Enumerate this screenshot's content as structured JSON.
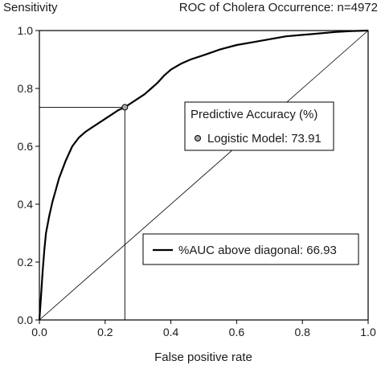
{
  "chart_data": {
    "type": "line",
    "title": "ROC of Cholera Occurrence: n=4972",
    "xlabel": "False positive rate",
    "ylabel": "Sensitivity",
    "xlim": [
      0.0,
      1.0
    ],
    "ylim": [
      0.0,
      1.0
    ],
    "xticks": [
      "0.0",
      "0.2",
      "0.4",
      "0.6",
      "0.8",
      "1.0"
    ],
    "yticks": [
      "0.0",
      "0.2",
      "0.4",
      "0.6",
      "0.8",
      "1.0"
    ],
    "grid": false,
    "series": [
      {
        "name": "ROC curve",
        "x": [
          0.0,
          0.005,
          0.01,
          0.015,
          0.02,
          0.03,
          0.04,
          0.05,
          0.06,
          0.07,
          0.08,
          0.09,
          0.1,
          0.12,
          0.14,
          0.16,
          0.18,
          0.2,
          0.22,
          0.24,
          0.26,
          0.28,
          0.3,
          0.32,
          0.34,
          0.36,
          0.38,
          0.4,
          0.43,
          0.46,
          0.5,
          0.55,
          0.6,
          0.65,
          0.7,
          0.75,
          0.8,
          0.85,
          0.9,
          0.95,
          1.0
        ],
        "y": [
          0.0,
          0.08,
          0.17,
          0.24,
          0.3,
          0.36,
          0.41,
          0.45,
          0.49,
          0.52,
          0.55,
          0.575,
          0.6,
          0.63,
          0.65,
          0.665,
          0.68,
          0.695,
          0.71,
          0.725,
          0.735,
          0.75,
          0.765,
          0.78,
          0.8,
          0.82,
          0.845,
          0.865,
          0.885,
          0.9,
          0.915,
          0.935,
          0.95,
          0.96,
          0.97,
          0.98,
          0.985,
          0.99,
          0.995,
          0.998,
          1.0
        ]
      },
      {
        "name": "diagonal",
        "x": [
          0.0,
          1.0
        ],
        "y": [
          0.0,
          1.0
        ]
      }
    ],
    "marker_point": {
      "x": 0.26,
      "y": 0.735
    },
    "legend_accuracy": {
      "title": "Predictive Accuracy (%)",
      "entry": "Logistic Model: 73.91"
    },
    "legend_auc": {
      "entry": "%AUC above diagonal: 66.93"
    }
  }
}
